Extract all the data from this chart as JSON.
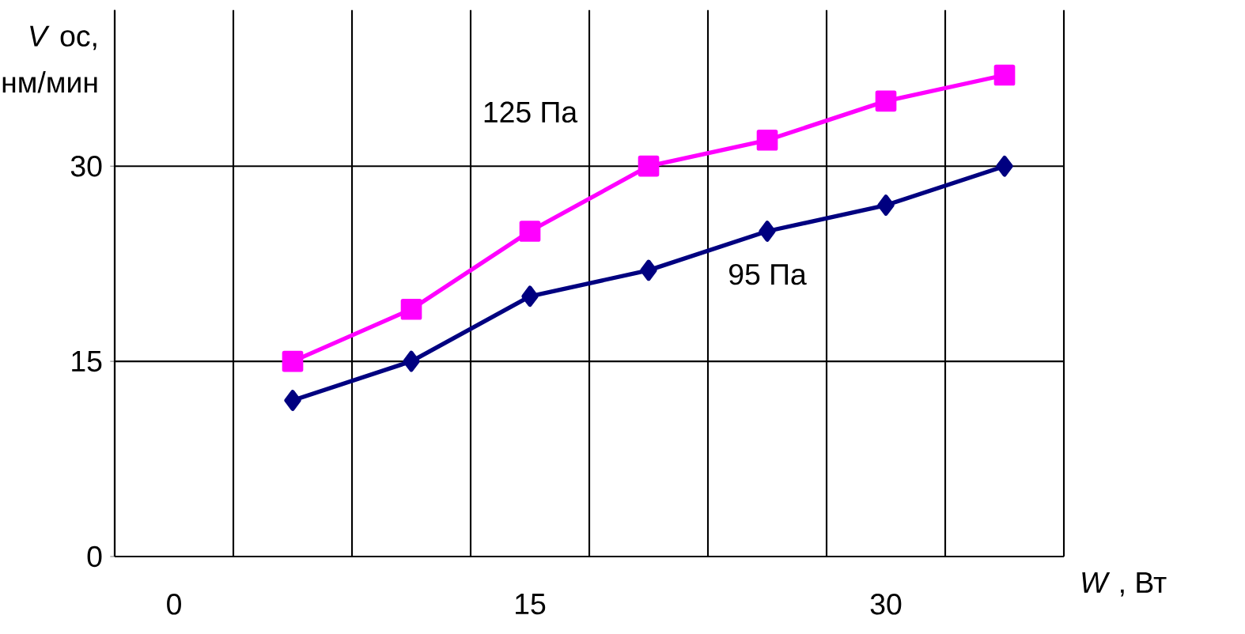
{
  "chart_data": {
    "type": "line",
    "xlabel": "*W* , Вт",
    "ylabel": "*V* ос, нм/мин",
    "categories": [
      "0",
      null,
      null,
      "15",
      null,
      null,
      "30",
      null
    ],
    "series": [
      {
        "name": "95  Па",
        "color": "#000080",
        "marker": "diamond",
        "values": [
          null,
          12,
          15,
          20,
          22,
          25,
          27,
          30
        ]
      },
      {
        "name": "125 Па",
        "color": "#ff00ff",
        "marker": "square",
        "values": [
          null,
          15,
          19,
          25,
          30,
          32,
          35,
          37
        ]
      }
    ],
    "ylim": [
      0,
      42
    ],
    "yticks": [
      0,
      15,
      30
    ],
    "grid": true
  }
}
